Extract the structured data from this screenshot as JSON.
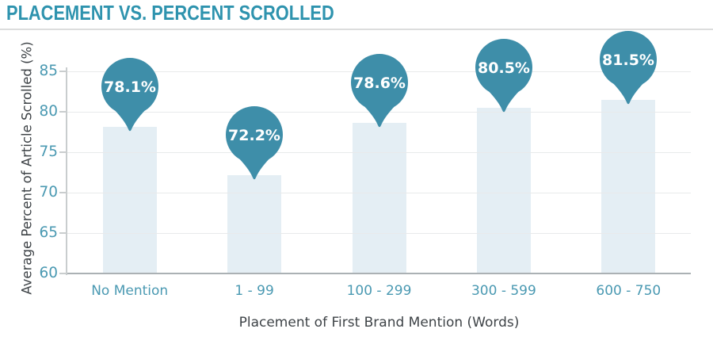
{
  "title": "PLACEMENT VS. PERCENT SCROLLED",
  "chart_data": {
    "type": "bar",
    "title": "PLACEMENT VS. PERCENT SCROLLED",
    "categories": [
      "No Mention",
      "1 - 99",
      "100 - 299",
      "300 - 599",
      "600 - 750"
    ],
    "values": [
      78.1,
      72.2,
      78.6,
      80.5,
      81.5
    ],
    "value_labels": [
      "78.1%",
      "72.2%",
      "78.6%",
      "80.5%",
      "81.5%"
    ],
    "xlabel": "Placement of First Brand Mention (Words)",
    "ylabel": "Average Percent of Article Scrolled (%)",
    "ylim": [
      60,
      85
    ],
    "yticks": [
      60,
      65,
      70,
      75,
      80,
      85
    ],
    "grid": true,
    "legend": false,
    "marker_style": "balloon-pin",
    "colors": {
      "marker": "#3e8ea9",
      "bar_fill": "#e4eef4",
      "title": "#2e93ae",
      "tick_text": "#4a99b2",
      "category_text": "#4a99b2",
      "axis_label_text": "#3e4347",
      "gridline": "#e8eaeb",
      "baseline": "#abb1b4",
      "axis_line": "#c9cdce",
      "marker_text": "#ffffff"
    }
  }
}
